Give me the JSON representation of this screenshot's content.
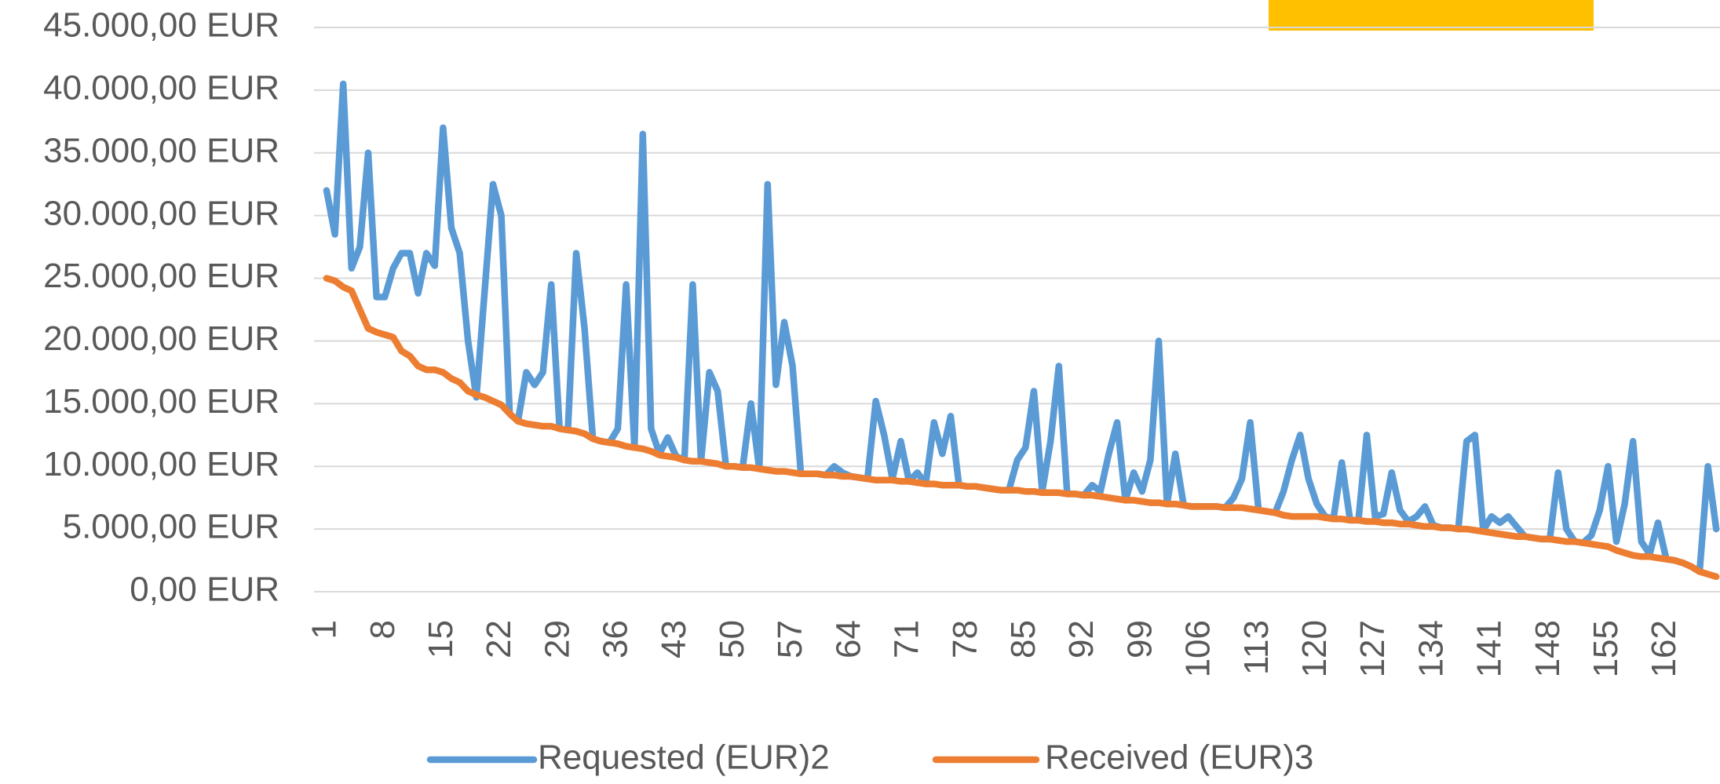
{
  "chart_data": {
    "type": "line",
    "categories": [
      "1",
      null,
      null,
      null,
      null,
      null,
      null,
      "8",
      null,
      null,
      null,
      null,
      null,
      null,
      "15",
      null,
      null,
      null,
      null,
      null,
      null,
      "22",
      null,
      null,
      null,
      null,
      null,
      null,
      "29",
      null,
      null,
      null,
      null,
      null,
      null,
      "36",
      null,
      null,
      null,
      null,
      null,
      null,
      "43",
      null,
      null,
      null,
      null,
      null,
      null,
      "50",
      null,
      null,
      null,
      null,
      null,
      null,
      "57",
      null,
      null,
      null,
      null,
      null,
      null,
      "64",
      null,
      null,
      null,
      null,
      null,
      null,
      "71",
      null,
      null,
      null,
      null,
      null,
      null,
      "78",
      null,
      null,
      null,
      null,
      null,
      null,
      "85",
      null,
      null,
      null,
      null,
      null,
      null,
      "92",
      null,
      null,
      null,
      null,
      null,
      null,
      "99",
      null,
      null,
      null,
      null,
      null,
      null,
      "106",
      null,
      null,
      null,
      null,
      null,
      null,
      "113",
      null,
      null,
      null,
      null,
      null,
      null,
      "120",
      null,
      null,
      null,
      null,
      null,
      null,
      "127",
      null,
      null,
      null,
      null,
      null,
      null,
      "134",
      null,
      null,
      null,
      null,
      null,
      null,
      "141",
      null,
      null,
      null,
      null,
      null,
      null,
      "148",
      null,
      null,
      null,
      null,
      null,
      null,
      "155",
      null,
      null,
      null,
      null,
      null,
      null,
      "162",
      null,
      null,
      null,
      null,
      null,
      null
    ],
    "series": [
      {
        "name": "Requested (EUR)2",
        "color": "#5b9bd5",
        "values": [
          32000,
          28500,
          40500,
          25800,
          27500,
          35000,
          23500,
          23500,
          25800,
          27000,
          27000,
          23800,
          27000,
          26000,
          37000,
          29000,
          27000,
          20000,
          15500,
          24000,
          32500,
          30000,
          14200,
          13600,
          17500,
          16500,
          17500,
          24500,
          13000,
          12900,
          27000,
          21000,
          12200,
          12000,
          11900,
          13000,
          24500,
          11500,
          36500,
          13000,
          11000,
          12300,
          10800,
          10500,
          24500,
          10400,
          17500,
          16000,
          10000,
          10000,
          9900,
          15000,
          9800,
          32500,
          16500,
          21500,
          18000,
          9400,
          9400,
          9400,
          9300,
          10000,
          9500,
          9200,
          9100,
          9000,
          15200,
          12500,
          9000,
          12000,
          8800,
          9500,
          8600,
          13500,
          11000,
          14000,
          8500,
          8400,
          8400,
          8300,
          8200,
          8100,
          8100,
          10500,
          11500,
          16000,
          8000,
          12000,
          18000,
          7800,
          7800,
          7700,
          8500,
          8000,
          11000,
          13500,
          7300,
          9500,
          8000,
          10500,
          20000,
          7000,
          11000,
          6900,
          6800,
          6800,
          6800,
          6800,
          6700,
          7500,
          9000,
          13500,
          6500,
          6400,
          6300,
          8000,
          10500,
          12500,
          9000,
          7000,
          6000,
          5800,
          10300,
          5700,
          5700,
          12500,
          6000,
          6200,
          9500,
          6500,
          5600,
          6000,
          6800,
          5300,
          5100,
          5100,
          5000,
          12000,
          12500,
          4900,
          6000,
          5500,
          6000,
          5200,
          4400,
          4300,
          4200,
          4200,
          9500,
          5000,
          4000,
          3900,
          4500,
          6500,
          10000,
          4000,
          7000,
          12000,
          4000,
          3000,
          5500,
          2600,
          2500,
          2300,
          2000,
          1600,
          10000,
          5000
        ]
      },
      {
        "name": "Received (EUR)3",
        "color": "#ed7d31",
        "values": [
          25000,
          24800,
          24300,
          24000,
          22500,
          21000,
          20700,
          20500,
          20300,
          19200,
          18800,
          18000,
          17700,
          17700,
          17500,
          17000,
          16700,
          16000,
          15700,
          15500,
          15200,
          14900,
          14200,
          13600,
          13400,
          13300,
          13200,
          13200,
          13000,
          12900,
          12800,
          12600,
          12200,
          12000,
          11900,
          11800,
          11600,
          11500,
          11400,
          11200,
          10900,
          10800,
          10700,
          10500,
          10400,
          10400,
          10300,
          10200,
          10000,
          10000,
          9900,
          9900,
          9800,
          9700,
          9600,
          9600,
          9500,
          9400,
          9400,
          9400,
          9300,
          9300,
          9200,
          9200,
          9100,
          9000,
          8900,
          8900,
          8900,
          8800,
          8800,
          8700,
          8600,
          8600,
          8500,
          8500,
          8500,
          8400,
          8400,
          8300,
          8200,
          8100,
          8100,
          8100,
          8000,
          8000,
          7900,
          7900,
          7900,
          7800,
          7800,
          7700,
          7700,
          7600,
          7500,
          7400,
          7300,
          7300,
          7200,
          7100,
          7100,
          7000,
          7000,
          6900,
          6800,
          6800,
          6800,
          6800,
          6700,
          6700,
          6700,
          6600,
          6500,
          6400,
          6300,
          6100,
          6000,
          6000,
          6000,
          6000,
          5900,
          5800,
          5800,
          5700,
          5700,
          5600,
          5600,
          5500,
          5500,
          5400,
          5400,
          5300,
          5200,
          5200,
          5100,
          5100,
          5000,
          5000,
          4900,
          4800,
          4700,
          4600,
          4500,
          4400,
          4400,
          4300,
          4200,
          4200,
          4100,
          4000,
          4000,
          3900,
          3800,
          3700,
          3600,
          3300,
          3100,
          2900,
          2800,
          2800,
          2700,
          2600,
          2500,
          2300,
          2000,
          1600,
          1400,
          1200
        ]
      }
    ],
    "ylim": [
      0,
      45000
    ],
    "yticks": [
      {
        "value": 0,
        "label": "0,00 EUR"
      },
      {
        "value": 5000,
        "label": "5.000,00 EUR"
      },
      {
        "value": 10000,
        "label": "10.000,00 EUR"
      },
      {
        "value": 15000,
        "label": "15.000,00 EUR"
      },
      {
        "value": 20000,
        "label": "20.000,00 EUR"
      },
      {
        "value": 25000,
        "label": "25.000,00 EUR"
      },
      {
        "value": 30000,
        "label": "30.000,00 EUR"
      },
      {
        "value": 35000,
        "label": "35.000,00 EUR"
      },
      {
        "value": 40000,
        "label": "40.000,00 EUR"
      },
      {
        "value": 45000,
        "label": "45.000,00 EUR"
      }
    ],
    "grid": true,
    "legend": "bottom"
  }
}
